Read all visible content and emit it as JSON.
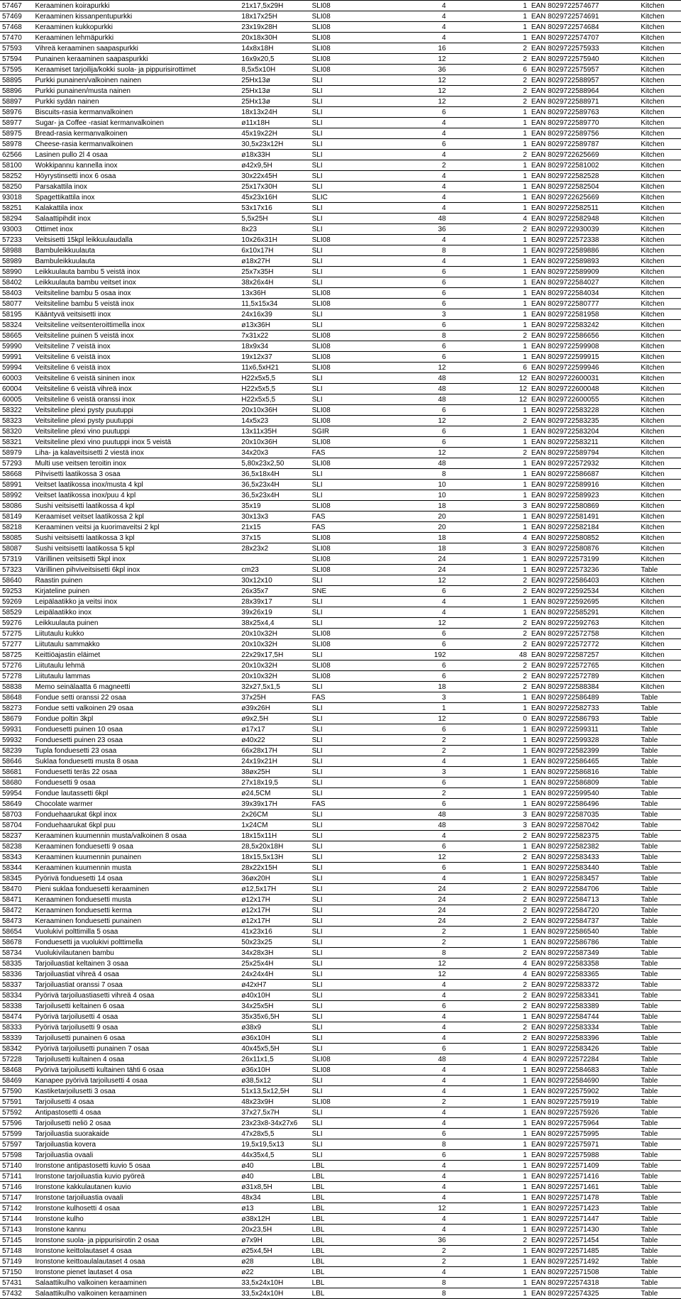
{
  "columns": [
    "code",
    "name",
    "dim",
    "type",
    "qty1",
    "qty2",
    "ean",
    "cat"
  ],
  "rows": [
    [
      "57467",
      "Keraaminen koirapurkki",
      "21x17,5x29H",
      "SLI08",
      "4",
      "1",
      "EAN 8029722574677",
      "Kitchen"
    ],
    [
      "57469",
      "Keraaminen kissanpentupurkki",
      "18x17x25H",
      "SLI08",
      "4",
      "1",
      "EAN 8029722574691",
      "Kitchen"
    ],
    [
      "57468",
      "Keraaminen kukkopurkki",
      "23x19x28H",
      "SLI08",
      "4",
      "1",
      "EAN 8029722574684",
      "Kitchen"
    ],
    [
      "57470",
      "Keraaminen lehmäpurkki",
      "20x18x30H",
      "SLI08",
      "4",
      "1",
      "EAN 8029722574707",
      "Kitchen"
    ],
    [
      "57593",
      "Vihreä keraaminen saapaspurkki",
      "14x8x18H",
      "SLI08",
      "16",
      "2",
      "EAN 8029722575933",
      "Kitchen"
    ],
    [
      "57594",
      "Punainen keraaminen saapaspurkki",
      "16x9x20,5",
      "SLI08",
      "12",
      "2",
      "EAN 8029722575940",
      "Kitchen"
    ],
    [
      "57595",
      "Keraamiset tarjoilija/kokki suola- ja pippurisirottimet",
      "8,5x5x10H",
      "SLI08",
      "36",
      "6",
      "EAN 8029722575957",
      "Kitchen"
    ],
    [
      "58895",
      "Purkki punainen/valkoinen nainen",
      "25Hx13ø",
      "SLI",
      "12",
      "2",
      "EAN 8029722588957",
      "Kitchen"
    ],
    [
      "58896",
      "Purkki punainen/musta nainen",
      "25Hx13ø",
      "SLI",
      "12",
      "2",
      "EAN 8029722588964",
      "Kitchen"
    ],
    [
      "58897",
      "Purkki sydän nainen",
      "25Hx13ø",
      "SLI",
      "12",
      "2",
      "EAN 8029722588971",
      "Kitchen"
    ],
    [
      "58976",
      "Biscuits-rasia kermanvalkoinen",
      "18x13x24H",
      "SLI",
      "6",
      "1",
      "EAN 8029722589763",
      "Kitchen"
    ],
    [
      "58977",
      "Sugar- ja Coffee -rasiat kermanvalkoinen",
      "ø11x18H",
      "SLI",
      "4",
      "1",
      "EAN 8029722589770",
      "Kitchen"
    ],
    [
      "58975",
      "Bread-rasia kermanvalkoinen",
      "45x19x22H",
      "SLI",
      "4",
      "1",
      "EAN 8029722589756",
      "Kitchen"
    ],
    [
      "58978",
      "Cheese-rasia kermanvalkoinen",
      "30,5x23x12H",
      "SLI",
      "6",
      "1",
      "EAN 8029722589787",
      "Kitchen"
    ],
    [
      "62566",
      "Lasinen pullo 2l 4 osaa",
      "ø18x33H",
      "SLI",
      "4",
      "2",
      "EAN 8029722625669",
      "Kitchen"
    ],
    [
      "58100",
      "Wokkipannu kannella inox",
      "ø42x9,5H",
      "SLI",
      "2",
      "1",
      "EAN 8029722581002",
      "Kitchen"
    ],
    [
      "58252",
      "Höyrystinsetti inox 6 osaa",
      "30x22x45H",
      "SLI",
      "4",
      "1",
      "EAN 8029722582528",
      "Kitchen"
    ],
    [
      "58250",
      "Parsakattila inox",
      "25x17x30H",
      "SLI",
      "4",
      "1",
      "EAN 8029722582504",
      "Kitchen"
    ],
    [
      "93018",
      "Spagettikattila inox",
      "45x23x16H",
      "SLIC",
      "4",
      "1",
      "EAN 8029722625669",
      "Kitchen"
    ],
    [
      "58251",
      "Kalakattila inox",
      "53x17x16",
      "SLI",
      "4",
      "1",
      "EAN 8029722582511",
      "Kitchen"
    ],
    [
      "58294",
      "Salaattipihdit inox",
      "5,5x25H",
      "SLI",
      "48",
      "4",
      "EAN 8029722582948",
      "Kitchen"
    ],
    [
      "93003",
      "Ottimet inox",
      "8x23",
      "SLI",
      "36",
      "2",
      "EAN 8029722930039",
      "Kitchen"
    ],
    [
      "57233",
      "Veitsisetti 15kpl leikkuulaudalla",
      "10x26x31H",
      "SLI08",
      "4",
      "1",
      "EAN 8029722572338",
      "Kitchen"
    ],
    [
      "58988",
      "Bambuleikkuulauta",
      "6x10x17H",
      "SLI",
      "8",
      "1",
      "EAN 8029722589886",
      "Kitchen"
    ],
    [
      "58989",
      "Bambuleikkuulauta",
      "ø18x27H",
      "SLI",
      "4",
      "1",
      "EAN 8029722589893",
      "Kitchen"
    ],
    [
      "58990",
      "Leikkuulauta bambu 5 veistä inox",
      "25x7x35H",
      "SLI",
      "6",
      "1",
      "EAN 8029722589909",
      "Kitchen"
    ],
    [
      "58402",
      "Leikkuulauta bambu veitset inox",
      "38x26x4H",
      "SLI",
      "6",
      "1",
      "EAN 8029722584027",
      "Kitchen"
    ],
    [
      "58403",
      "Veitsiteline bambu 5 osaa inox",
      "13x36H",
      "SLI08",
      "6",
      "1",
      "EAN 8029722584034",
      "Kitchen"
    ],
    [
      "58077",
      "Veitsiteline bambu 5 veistä inox",
      "11,5x15x34",
      "SLI08",
      "6",
      "1",
      "EAN 8029722580777",
      "Kitchen"
    ],
    [
      "58195",
      "Kääntyvä veitsisetti inox",
      "24x16x39",
      "SLI",
      "3",
      "1",
      "EAN 8029722581958",
      "Kitchen"
    ],
    [
      "58324",
      "Veitsiteline veitsenteroittimella inox",
      "ø13x36H",
      "SLI",
      "6",
      "1",
      "EAN 8029722583242",
      "Kitchen"
    ],
    [
      "58665",
      "Veitsiteline puinen 5 veistä inox",
      "7x31x22",
      "SLI08",
      "8",
      "2",
      "EAN 8029722586656",
      "Kitchen"
    ],
    [
      "59990",
      "Veitsiteline 7 veistä inox",
      "18x9x34",
      "SLI08",
      "6",
      "1",
      "EAN 8029722599908",
      "Kitchen"
    ],
    [
      "59991",
      "Veitsiteline 6 veistä inox",
      "19x12x37",
      "SLI08",
      "6",
      "1",
      "EAN 8029722599915",
      "Kitchen"
    ],
    [
      "59994",
      "Veitsiteline 6 veistä inox",
      "11x6,5xH21",
      "SLI08",
      "12",
      "6",
      "EAN 8029722599946",
      "Kitchen"
    ],
    [
      "60003",
      "Veitsiteline 6 veistä sininen inox",
      "H22x5x5,5",
      "SLI",
      "48",
      "12",
      "EAN 8029722600031",
      "Kitchen"
    ],
    [
      "60004",
      "Veitsiteline 6 veistä vihreä inox",
      "H22x5x5,5",
      "SLI",
      "48",
      "12",
      "EAN 8029722600048",
      "Kitchen"
    ],
    [
      "60005",
      "Veitsiteline 6 veistä oranssi inox",
      "H22x5x5,5",
      "SLI",
      "48",
      "12",
      "EAN 8029722600055",
      "Kitchen"
    ],
    [
      "58322",
      "Veitsiteline plexi pysty puutuppi",
      "20x10x36H",
      "SLI08",
      "6",
      "1",
      "EAN 8029722583228",
      "Kitchen"
    ],
    [
      "58323",
      "Veitsiteline plexi pysty puutuppi",
      "14x5x23",
      "SLI08",
      "12",
      "2",
      "EAN 8029722583235",
      "Kitchen"
    ],
    [
      "58320",
      "Veitsiteline plexi vino puutuppi",
      "13x11x35H",
      "SGIR",
      "6",
      "1",
      "EAN 8029722583204",
      "Kitchen"
    ],
    [
      "58321",
      "Veitsiteline plexi vino puutuppi inox 5 veistä",
      "20x10x36H",
      "SLI08",
      "6",
      "1",
      "EAN 8029722583211",
      "Kitchen"
    ],
    [
      "58979",
      "Liha- ja kalaveitsisetti 2 viestä inox",
      "34x20x3",
      "FAS",
      "12",
      "2",
      "EAN 8029722589794",
      "Kitchen"
    ],
    [
      "57293",
      "Multi use veitsen teroitin inox",
      "5,80x23x2,50",
      "SLI08",
      "48",
      "1",
      "EAN 8029722572932",
      "Kitchen"
    ],
    [
      "58668",
      "Pihvisetti laatikossa 3 osaa",
      "36,5x18x4H",
      "SLI",
      "8",
      "1",
      "EAN 8029722586687",
      "Kitchen"
    ],
    [
      "58991",
      "Veitset laatikossa inox/musta 4 kpl",
      "36,5x23x4H",
      "SLI",
      "10",
      "1",
      "EAN 8029722589916",
      "Kitchen"
    ],
    [
      "58992",
      "Veitset laatikossa inox/puu 4 kpl",
      "36,5x23x4H",
      "SLI",
      "10",
      "1",
      "EAN 8029722589923",
      "Kitchen"
    ],
    [
      "58086",
      "Sushi veitsisetti laatikossa 4 kpl",
      "35x19",
      "SLI08",
      "18",
      "3",
      "EAN 8029722580869",
      "Kitchen"
    ],
    [
      "58149",
      "Keraamiset veitset laatikossa 2 kpl",
      "30x13x3",
      "FAS",
      "20",
      "1",
      "EAN 8029722581491",
      "Kitchen"
    ],
    [
      "58218",
      "Keraaminen veitsi ja kuorimaveitsi 2 kpl",
      "21x15",
      "FAS",
      "20",
      "1",
      "EAN 8029722582184",
      "Kitchen"
    ],
    [
      "58085",
      "Sushi veitsisetti laatikossa 3 kpl",
      "37x15",
      "SLI08",
      "18",
      "4",
      "EAN 8029722580852",
      "Kitchen"
    ],
    [
      "58087",
      "Sushi veitsisetti laatikossa 5 kpl",
      "28x23x2",
      "SLI08",
      "18",
      "3",
      "EAN 8029722580876",
      "Kitchen"
    ],
    [
      "57319",
      "Värillinen veitsisetti 5kpl inox",
      "",
      "SLI08",
      "24",
      "1",
      "EAN 8029722573199",
      "Kitchen"
    ],
    [
      "57323",
      "Värillinen pihviveitsisetti 6kpl inox",
      "cm23",
      "SLI08",
      "24",
      "1",
      "EAN 8029722573236",
      "Table"
    ],
    [
      "58640",
      "Raastin puinen",
      "30x12x10",
      "SLI",
      "12",
      "2",
      "EAN 8029722586403",
      "Kitchen"
    ],
    [
      "59253",
      "Kirjateline puinen",
      "26x35x7",
      "SNE",
      "6",
      "2",
      "EAN 8029722592534",
      "Kitchen"
    ],
    [
      "59269",
      "Leipälaatikko ja veitsi inox",
      "28x39x17",
      "SLI",
      "4",
      "1",
      "EAN 8029722592695",
      "Kitchen"
    ],
    [
      "58529",
      "Leipälaatikko inox",
      "39x26x19",
      "SLI",
      "4",
      "1",
      "EAN 8029722585291",
      "Kitchen"
    ],
    [
      "59276",
      "Leikkuulauta puinen",
      "38x25x4,4",
      "SLI",
      "12",
      "2",
      "EAN 8029722592763",
      "Kitchen"
    ],
    [
      "57275",
      "Liitutaulu kukko",
      "20x10x32H",
      "SLI08",
      "6",
      "2",
      "EAN 8029722572758",
      "Kitchen"
    ],
    [
      "57277",
      "Liitutaulu sammakko",
      "20x10x32H",
      "SLI08",
      "6",
      "2",
      "EAN 8029722572772",
      "Kitchen"
    ],
    [
      "58725",
      "Keittiöajastin eläimet",
      "22x29x17,5H",
      "SLI",
      "192",
      "48",
      "EAN 8029722587257",
      "Kitchen"
    ],
    [
      "57276",
      "Liitutaulu lehmä",
      "20x10x32H",
      "SLI08",
      "6",
      "2",
      "EAN 8029722572765",
      "Kitchen"
    ],
    [
      "57278",
      "Liitutaulu lammas",
      "20x10x32H",
      "SLI08",
      "6",
      "2",
      "EAN 8029722572789",
      "Kitchen"
    ],
    [
      "58838",
      "Memo seinälaatta 6 magneetti",
      "32x27,5x1,5",
      "SLI",
      "18",
      "2",
      "EAN 8029722588384",
      "Kitchen"
    ],
    [
      "58648",
      "Fondue setti oranssi 22 osaa",
      "37x25H",
      "FAS",
      "3",
      "1",
      "EAN 8029722586489",
      "Table"
    ],
    [
      "58273",
      "Fondue setti valkoinen 29 osaa",
      "ø39x26H",
      "SLI",
      "1",
      "1",
      "EAN 8029722582733",
      "Table"
    ],
    [
      "58679",
      "Fondue poltin 3kpl",
      "ø9x2,5H",
      "SLI",
      "12",
      "0",
      "EAN 8029722586793",
      "Table"
    ],
    [
      "59931",
      "Fonduesetti puinen 10 osaa",
      "ø17x17",
      "SLI",
      "6",
      "1",
      "EAN 8029722599311",
      "Table"
    ],
    [
      "59932",
      "Fonduesetti puinen 23 osaa",
      "ø40x22",
      "SLI",
      "2",
      "1",
      "EAN 8029722599328",
      "Table"
    ],
    [
      "58239",
      "Tupla fonduesetti 23 osaa",
      "66x28x17H",
      "SLI",
      "2",
      "1",
      "EAN 8029722582399",
      "Table"
    ],
    [
      "58646",
      "Suklaa fonduesetti musta 8 osaa",
      "24x19x21H",
      "SLI",
      "4",
      "1",
      "EAN 8029722586465",
      "Table"
    ],
    [
      "58681",
      "Fonduesetti teräs 22 osaa",
      "38øx25H",
      "SLI",
      "3",
      "1",
      "EAN 8029722586816",
      "Table"
    ],
    [
      "58680",
      "Fonduesetti 9 osaa",
      "27x18x19,5",
      "SLI",
      "6",
      "1",
      "EAN 8029722586809",
      "Table"
    ],
    [
      "59954",
      "Fondue lautassetti 6kpl",
      "ø24,5CM",
      "SLI",
      "2",
      "1",
      "EAN 8029722599540",
      "Table"
    ],
    [
      "58649",
      "Chocolate warmer",
      "39x39x17H",
      "FAS",
      "6",
      "1",
      "EAN 8029722586496",
      "Table"
    ],
    [
      "58703",
      "Fonduehaarukat 6kpl inox",
      "2x26CM",
      "SLI",
      "48",
      "3",
      "EAN 8029722587035",
      "Table"
    ],
    [
      "58704",
      "Fonduehaarukat 6kpl puu",
      "1x24CM",
      "SLI",
      "48",
      "3",
      "EAN 8029722587042",
      "Table"
    ],
    [
      "58237",
      "Keraaminen kuumennin musta/valkoinen 8 osaa",
      "18x15x11H",
      "SLI",
      "4",
      "2",
      "EAN 8029722582375",
      "Table"
    ],
    [
      "58238",
      "Keraaminen fonduesetti 9 osaa",
      "28,5x20x18H",
      "SLI",
      "6",
      "1",
      "EAN 8029722582382",
      "Table"
    ],
    [
      "58343",
      "Keraaminen kuumennin punainen",
      "18x15,5x13H",
      "SLI",
      "12",
      "2",
      "EAN 8029722583433",
      "Table"
    ],
    [
      "58344",
      "Keraaminen kuumennin musta",
      "28x22x15H",
      "SLI",
      "6",
      "1",
      "EAN 8029722583440",
      "Table"
    ],
    [
      "58345",
      "Pyörivä fonduesetti 14 osaa",
      "36øx20H",
      "SLI",
      "4",
      "1",
      "EAN 8029722583457",
      "Table"
    ],
    [
      "58470",
      "Pieni suklaa fonduesetti keraaminen",
      "ø12,5x17H",
      "SLI",
      "24",
      "2",
      "EAN 8029722584706",
      "Table"
    ],
    [
      "58471",
      "Keraaminen fonduesetti musta",
      "ø12x17H",
      "SLI",
      "24",
      "2",
      "EAN 8029722584713",
      "Table"
    ],
    [
      "58472",
      "Keraaminen fonduesetti kerma",
      "ø12x17H",
      "SLI",
      "24",
      "2",
      "EAN 8029722584720",
      "Table"
    ],
    [
      "58473",
      "Keraaminen fonduesetti punainen",
      "ø12x17H",
      "SLI",
      "24",
      "2",
      "EAN 8029722584737",
      "Table"
    ],
    [
      "58654",
      "Vuolukivi polttimilla 5 osaa",
      "41x23x16",
      "SLI",
      "2",
      "1",
      "EAN 8029722586540",
      "Table"
    ],
    [
      "58678",
      "Fonduesetti ja vuolukivi polttimella",
      "50x23x25",
      "SLI",
      "2",
      "1",
      "EAN 8029722586786",
      "Table"
    ],
    [
      "58734",
      "Vuolukivilautanen bambu",
      "34x28x3H",
      "SLI",
      "8",
      "2",
      "EAN 8029722587349",
      "Table"
    ],
    [
      "58335",
      "Tarjoiluastiat keltainen 3 osaa",
      "25x25x4H",
      "SLI",
      "12",
      "4",
      "EAN 8029722583358",
      "Table"
    ],
    [
      "58336",
      "Tarjoiluastiat vihreä 4 osaa",
      "24x24x4H",
      "SLI",
      "12",
      "4",
      "EAN 8029722583365",
      "Table"
    ],
    [
      "58337",
      "Tarjoiluastiat oranssi 7 osaa",
      "ø42xH7",
      "SLI",
      "4",
      "2",
      "EAN 8029722583372",
      "Table"
    ],
    [
      "58334",
      "Pyörivä tarjoiluastiasetti vihreä 4 osaa",
      "ø40x10H",
      "SLI",
      "4",
      "2",
      "EAN 8029722583341",
      "Table"
    ],
    [
      "58338",
      "Tarjoilusetti keltainen 6 osaa",
      "34x25x5H",
      "SLI",
      "6",
      "2",
      "EAN 8029722583389",
      "Table"
    ],
    [
      "58474",
      "Pyörivä tarjoilusetti 4 osaa",
      "35x35x6,5H",
      "SLI",
      "4",
      "1",
      "EAN 8029722584744",
      "Table"
    ],
    [
      "58333",
      "Pyörivä tarjoilusetti 9 osaa",
      "ø38x9",
      "SLI",
      "4",
      "2",
      "EAN 8029722583334",
      "Table"
    ],
    [
      "58339",
      "Tarjoilusetti punainen 6 osaa",
      "ø36x10H",
      "SLI",
      "4",
      "2",
      "EAN 8029722583396",
      "Table"
    ],
    [
      "58342",
      "Pyörivä tarjoilusetti punainen 7 osaa",
      "40x45x5,5H",
      "SLI",
      "6",
      "1",
      "EAN 8029722583426",
      "Table"
    ],
    [
      "57228",
      "Tarjoilusetti kultainen 4 osaa",
      "26x11x1,5",
      "SLI08",
      "48",
      "4",
      "EAN 8029722572284",
      "Table"
    ],
    [
      "58468",
      "Pyörivä tarjoilusetti kultainen tähti 6 osaa",
      "ø36x10H",
      "SLI08",
      "4",
      "1",
      "EAN 8029722584683",
      "Table"
    ],
    [
      "58469",
      "Kanapee pyörivä tarjoilusetti 4 osaa",
      "ø38,5x12",
      "SLI",
      "4",
      "1",
      "EAN 8029722584690",
      "Table"
    ],
    [
      "57590",
      "Kastiketarjoilusetti 3 osaa",
      "51x13,5x12,5H",
      "SLI",
      "4",
      "1",
      "EAN 8029722575902",
      "Table"
    ],
    [
      "57591",
      "Tarjoilusetti 4 osaa",
      "48x23x9H",
      "SLI08",
      "2",
      "1",
      "EAN 8029722575919",
      "Table"
    ],
    [
      "57592",
      "Antipastosetti 4 osaa",
      "37x27,5x7H",
      "SLI",
      "4",
      "1",
      "EAN 8029722575926",
      "Table"
    ],
    [
      "57596",
      "Tarjoilusetti neliö 2 osaa",
      "23x23x8-34x27x6",
      "SLI",
      "4",
      "1",
      "EAN 8029722575964",
      "Table"
    ],
    [
      "57599",
      "Tarjoiluastia suorakaide",
      "47x28x5,5",
      "SLI",
      "6",
      "1",
      "EAN 8029722575995",
      "Table"
    ],
    [
      "57597",
      "Tarjoiluastia kovera",
      "19,5x19,5x13",
      "SLI",
      "8",
      "1",
      "EAN 8029722575971",
      "Table"
    ],
    [
      "57598",
      "Tarjoiluastia ovaali",
      "44x35x4,5",
      "SLI",
      "6",
      "1",
      "EAN 8029722575988",
      "Table"
    ],
    [
      "57140",
      "Ironstone antipastosetti kuvio 5 osaa",
      "ø40",
      "LBL",
      "4",
      "1",
      "EAN 8029722571409",
      "Table"
    ],
    [
      "57141",
      "Ironstone tarjoiluastia kuvio pyöreä",
      "ø40",
      "LBL",
      "4",
      "1",
      "EAN 8029722571416",
      "Table"
    ],
    [
      "57146",
      "Ironstone kakkulautanen kuvio",
      "ø31x8,5H",
      "LBL",
      "4",
      "1",
      "EAN 8029722571461",
      "Table"
    ],
    [
      "57147",
      "Ironstone tarjoiluastia ovaali",
      "48x34",
      "LBL",
      "4",
      "1",
      "EAN 8029722571478",
      "Table"
    ],
    [
      "57142",
      "Ironstone kulhosetti 4 osaa",
      "ø13",
      "LBL",
      "12",
      "1",
      "EAN 8029722571423",
      "Table"
    ],
    [
      "57144",
      "Ironstone kulho",
      "ø38x12H",
      "LBL",
      "4",
      "1",
      "EAN 8029722571447",
      "Table"
    ],
    [
      "57143",
      "Ironstone kannu",
      "20x23,5H",
      "LBL",
      "4",
      "1",
      "EAN 8029722571430",
      "Table"
    ],
    [
      "57145",
      "Ironstone suola- ja pippurisirotin 2 osaa",
      "ø7x9H",
      "LBL",
      "36",
      "2",
      "EAN 8029722571454",
      "Table"
    ],
    [
      "57148",
      "Ironstone keittolautaset 4 osaa",
      "ø25x4,5H",
      "LBL",
      "2",
      "1",
      "EAN 8029722571485",
      "Table"
    ],
    [
      "57149",
      "Ironstone keittoaulalautaset 4 osaa",
      "ø28",
      "LBL",
      "2",
      "1",
      "EAN 8029722571492",
      "Table"
    ],
    [
      "57150",
      "Ironstone pienet lautaset 4 osa",
      "ø22",
      "LBL",
      "4",
      "1",
      "EAN 8029722571508",
      "Table"
    ],
    [
      "57431",
      "Salaattikulho valkoinen keraaminen",
      "33,5x24x10H",
      "LBL",
      "8",
      "1",
      "EAN 8029722574318",
      "Table"
    ],
    [
      "57432",
      "Salaattikulho valkoinen keraaminen",
      "33,5x24x10H",
      "LBL",
      "8",
      "1",
      "EAN 8029722574325",
      "Table"
    ]
  ]
}
